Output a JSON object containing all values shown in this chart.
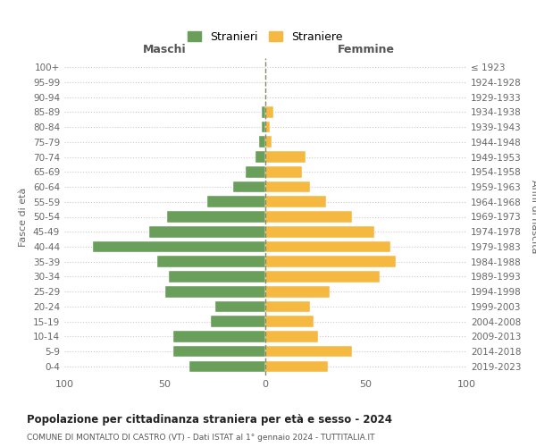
{
  "age_groups": [
    "100+",
    "95-99",
    "90-94",
    "85-89",
    "80-84",
    "75-79",
    "70-74",
    "65-69",
    "60-64",
    "55-59",
    "50-54",
    "45-49",
    "40-44",
    "35-39",
    "30-34",
    "25-29",
    "20-24",
    "15-19",
    "10-14",
    "5-9",
    "0-4"
  ],
  "birth_years": [
    "≤ 1923",
    "1924-1928",
    "1929-1933",
    "1934-1938",
    "1939-1943",
    "1944-1948",
    "1949-1953",
    "1954-1958",
    "1959-1963",
    "1964-1968",
    "1969-1973",
    "1974-1978",
    "1979-1983",
    "1984-1988",
    "1989-1993",
    "1994-1998",
    "1999-2003",
    "2004-2008",
    "2009-2013",
    "2014-2018",
    "2019-2023"
  ],
  "maschi": [
    0,
    0,
    0,
    2,
    2,
    3,
    5,
    10,
    16,
    29,
    49,
    58,
    86,
    54,
    48,
    50,
    25,
    27,
    46,
    46,
    38
  ],
  "femmine": [
    0,
    0,
    0,
    4,
    2,
    3,
    20,
    18,
    22,
    30,
    43,
    54,
    62,
    65,
    57,
    32,
    22,
    24,
    26,
    43,
    31
  ],
  "color_maschi": "#6a9e5b",
  "color_femmine": "#f5b942",
  "color_grid": "#cccccc",
  "color_dashed": "#888866",
  "title": "Popolazione per cittadinanza straniera per età e sesso - 2024",
  "subtitle": "COMUNE DI MONTALTO DI CASTRO (VT) - Dati ISTAT al 1° gennaio 2024 - TUTTITALIA.IT",
  "xlabel_left": "Maschi",
  "xlabel_right": "Femmine",
  "ylabel_left": "Fasce di età",
  "ylabel_right": "Anni di nascita",
  "legend_maschi": "Stranieri",
  "legend_femmine": "Straniere",
  "xlim": 100,
  "background_color": "#ffffff"
}
